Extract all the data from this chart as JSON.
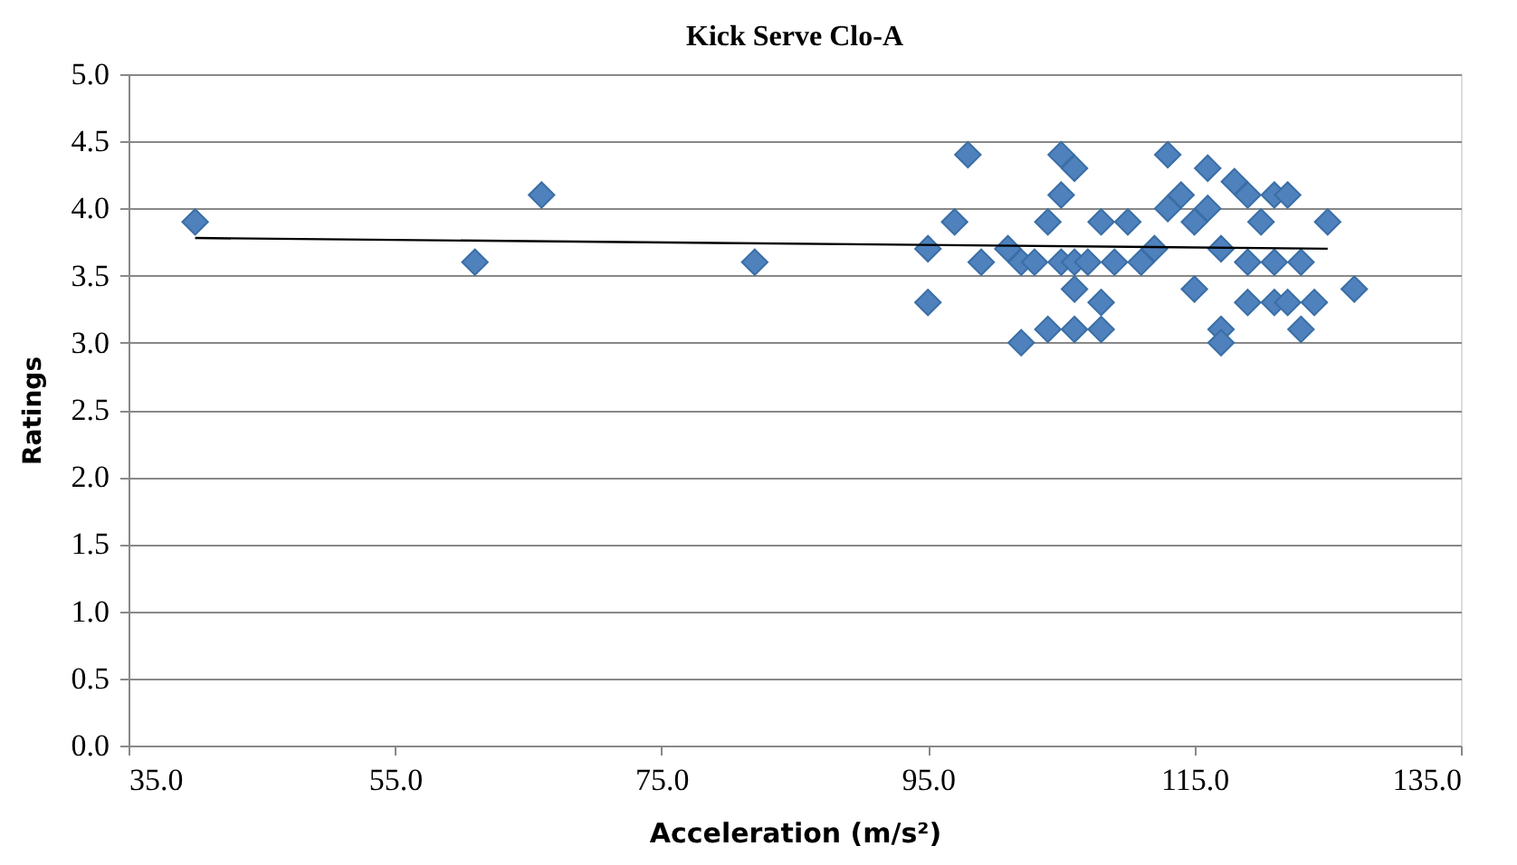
{
  "chart_data": {
    "type": "scatter",
    "title": "Kick Serve Clo-A",
    "xlabel": "Acceleration (m/s²)",
    "ylabel": "Ratings",
    "marker": "diamond",
    "grid": "y",
    "legend": false,
    "xlim": [
      35,
      135
    ],
    "ylim": [
      0,
      5
    ],
    "xticks": [
      {
        "value": 35,
        "label": "35.0"
      },
      {
        "value": 55,
        "label": "55.0"
      },
      {
        "value": 75,
        "label": "75.0"
      },
      {
        "value": 95,
        "label": "95.0"
      },
      {
        "value": 115,
        "label": "115.0"
      },
      {
        "value": 135,
        "label": "135.0"
      }
    ],
    "yticks": [
      {
        "value": 0,
        "label": "0.0"
      },
      {
        "value": 0.5,
        "label": "0.5"
      },
      {
        "value": 1,
        "label": "1.0"
      },
      {
        "value": 1.5,
        "label": "1.5"
      },
      {
        "value": 2,
        "label": "2.0"
      },
      {
        "value": 2.5,
        "label": "2.5"
      },
      {
        "value": 3,
        "label": "3.0"
      },
      {
        "value": 3.5,
        "label": "3.5"
      },
      {
        "value": 4,
        "label": "4.0"
      },
      {
        "value": 4.5,
        "label": "4.5"
      },
      {
        "value": 5,
        "label": "5.0"
      }
    ],
    "series": [
      {
        "color": "#4f81bd",
        "x": [
          40,
          61,
          66,
          82,
          95,
          95,
          97,
          98,
          99,
          101,
          102,
          102,
          103,
          104,
          104,
          105,
          105,
          105,
          106,
          106,
          106,
          106,
          107,
          108,
          108,
          108,
          109,
          110,
          111,
          112,
          113,
          113,
          114,
          115,
          115,
          116,
          116,
          117,
          117,
          117,
          118,
          119,
          119,
          119,
          120,
          121,
          121,
          121,
          122,
          122,
          123,
          123,
          124,
          125,
          127
        ],
        "values": [
          3.9,
          3.6,
          4.1,
          3.6,
          3.7,
          3.3,
          3.9,
          4.4,
          3.6,
          3.7,
          3.6,
          3.0,
          3.6,
          3.1,
          3.9,
          4.4,
          4.1,
          3.6,
          3.4,
          3.1,
          4.3,
          3.6,
          3.6,
          3.9,
          3.3,
          3.1,
          3.6,
          3.9,
          3.6,
          3.7,
          4.0,
          4.4,
          4.1,
          3.9,
          3.4,
          4.3,
          4.0,
          3.1,
          3.0,
          3.7,
          4.2,
          4.1,
          3.6,
          3.3,
          3.9,
          4.1,
          3.6,
          3.3,
          4.1,
          3.3,
          3.6,
          3.1,
          3.3,
          3.9,
          3.4
        ]
      },
      {
        "type": "line",
        "marker": "none",
        "color": "#000000",
        "x": [
          40,
          125
        ],
        "values": [
          3.78,
          3.7
        ]
      }
    ]
  }
}
